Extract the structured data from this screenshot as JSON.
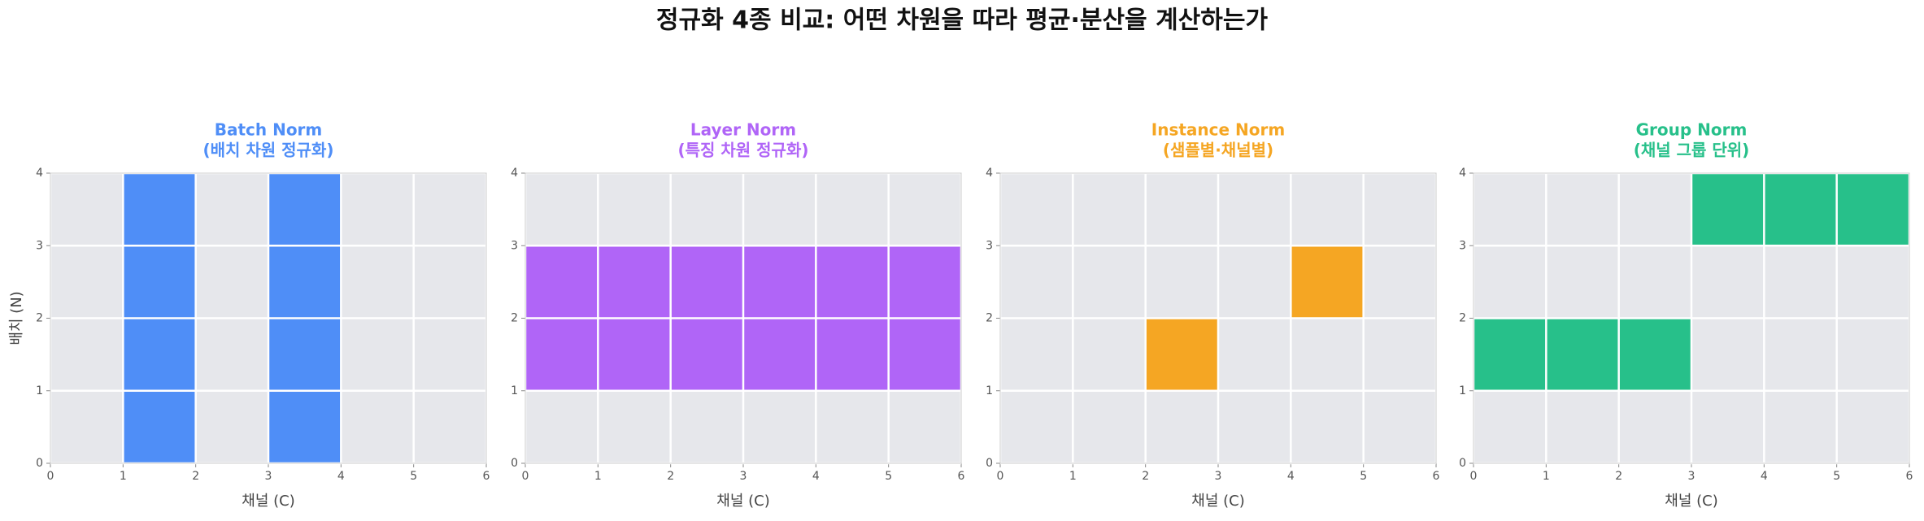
{
  "title": "정규화 4종 비교: 어떤 차원을 따라 평균·분산을 계산하는가",
  "chart_data": [
    {
      "type": "heatmap",
      "title": "Batch Norm",
      "subtitle": "(배치 차원 정규화)",
      "color": "#4f8ef7",
      "xlabel": "채널 (C)",
      "ylabel": "배치 (N)",
      "xlim": [
        0,
        6
      ],
      "ylim": [
        0,
        4
      ],
      "xticks": [
        0,
        1,
        2,
        3,
        4,
        5,
        6
      ],
      "yticks": [
        0,
        1,
        2,
        3,
        4
      ],
      "grid": true,
      "cells": [
        {
          "x": 1,
          "y": 0
        },
        {
          "x": 1,
          "y": 1
        },
        {
          "x": 1,
          "y": 2
        },
        {
          "x": 1,
          "y": 3
        },
        {
          "x": 3,
          "y": 0
        },
        {
          "x": 3,
          "y": 1
        },
        {
          "x": 3,
          "y": 2
        },
        {
          "x": 3,
          "y": 3
        }
      ]
    },
    {
      "type": "heatmap",
      "title": "Layer Norm",
      "subtitle": "(특징 차원 정규화)",
      "color": "#b065f7",
      "xlabel": "채널 (C)",
      "xlim": [
        0,
        6
      ],
      "ylim": [
        0,
        4
      ],
      "xticks": [
        0,
        1,
        2,
        3,
        4,
        5,
        6
      ],
      "yticks": [
        0,
        1,
        2,
        3,
        4
      ],
      "grid": true,
      "cells": [
        {
          "x": 0,
          "y": 1
        },
        {
          "x": 1,
          "y": 1
        },
        {
          "x": 2,
          "y": 1
        },
        {
          "x": 3,
          "y": 1
        },
        {
          "x": 4,
          "y": 1
        },
        {
          "x": 5,
          "y": 1
        },
        {
          "x": 0,
          "y": 2
        },
        {
          "x": 1,
          "y": 2
        },
        {
          "x": 2,
          "y": 2
        },
        {
          "x": 3,
          "y": 2
        },
        {
          "x": 4,
          "y": 2
        },
        {
          "x": 5,
          "y": 2
        }
      ]
    },
    {
      "type": "heatmap",
      "title": "Instance Norm",
      "subtitle": "(샘플별·채널별)",
      "color": "#f5a623",
      "xlabel": "채널 (C)",
      "xlim": [
        0,
        6
      ],
      "ylim": [
        0,
        4
      ],
      "xticks": [
        0,
        1,
        2,
        3,
        4,
        5,
        6
      ],
      "yticks": [
        0,
        1,
        2,
        3,
        4
      ],
      "grid": true,
      "cells": [
        {
          "x": 2,
          "y": 1
        },
        {
          "x": 4,
          "y": 2
        }
      ]
    },
    {
      "type": "heatmap",
      "title": "Group Norm",
      "subtitle": "(채널 그룹 단위)",
      "color": "#27c08a",
      "xlabel": "채널 (C)",
      "xlim": [
        0,
        6
      ],
      "ylim": [
        0,
        4
      ],
      "xticks": [
        0,
        1,
        2,
        3,
        4,
        5,
        6
      ],
      "yticks": [
        0,
        1,
        2,
        3,
        4
      ],
      "grid": true,
      "cells": [
        {
          "x": 0,
          "y": 1
        },
        {
          "x": 1,
          "y": 1
        },
        {
          "x": 2,
          "y": 1
        },
        {
          "x": 3,
          "y": 3
        },
        {
          "x": 4,
          "y": 3
        },
        {
          "x": 5,
          "y": 3
        }
      ]
    }
  ]
}
